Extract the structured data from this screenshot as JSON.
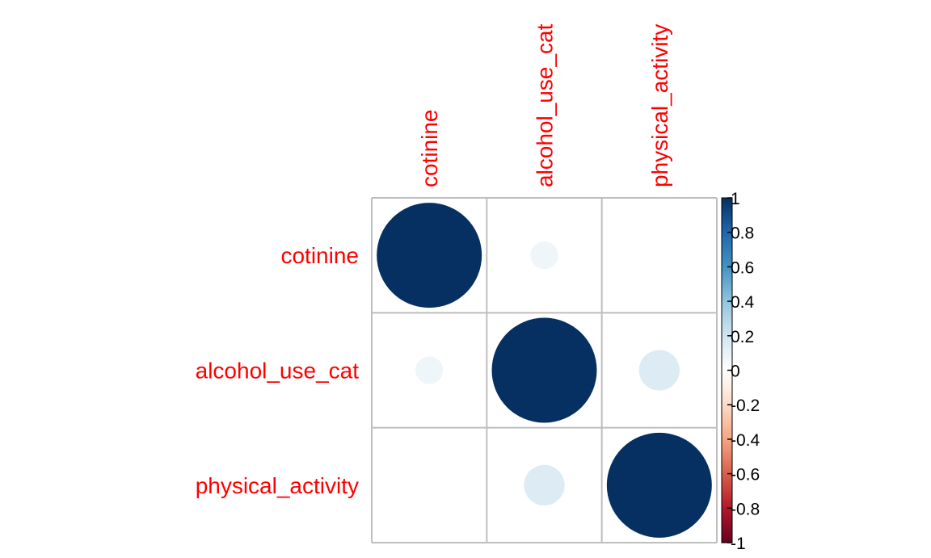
{
  "chart_data": {
    "type": "heatmap",
    "variables": [
      "cotinine",
      "alcohol_use_cat",
      "physical_activity"
    ],
    "matrix": [
      [
        1.0,
        0.07,
        0.0
      ],
      [
        0.07,
        1.0,
        0.15
      ],
      [
        0.0,
        0.15,
        1.0
      ]
    ],
    "colorbar": {
      "min": -1,
      "max": 1,
      "tick_values": [
        1,
        0.8,
        0.6,
        0.4,
        0.2,
        0,
        -0.2,
        -0.4,
        -0.6,
        -0.8,
        -1
      ],
      "tick_labels": [
        "1",
        "0.8",
        "0.6",
        "0.4",
        "0.2",
        "0",
        "-0.2",
        "-0.4",
        "-0.6",
        "-0.8",
        "-1"
      ]
    },
    "glyph": "circle",
    "label_color": "#ff0000",
    "grid_color": "#bebebe",
    "palette": [
      "#67001f",
      "#b2182b",
      "#d6604d",
      "#f4a582",
      "#fddbc7",
      "#ffffff",
      "#d1e5f0",
      "#92c5de",
      "#4393c3",
      "#2166ac",
      "#053061"
    ],
    "legend_position": "right"
  }
}
